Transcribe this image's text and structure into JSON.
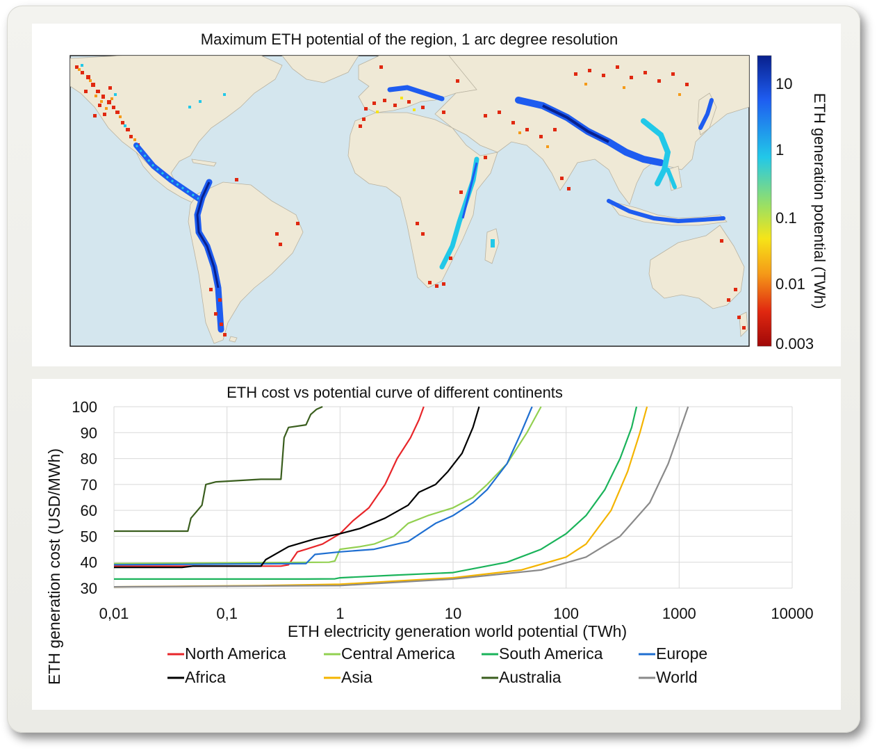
{
  "map": {
    "title": "Maximum ETH potential of the region, 1 arc degree resolution",
    "colorbar": {
      "label": "ETH generation potential (TWh)",
      "ticks": [
        "10",
        "1",
        "0.1",
        "0.01",
        "0.003"
      ],
      "colors": [
        "#08208c",
        "#1e5cf0",
        "#22c8e8",
        "#9ee060",
        "#f6e418",
        "#f59a18",
        "#e02810",
        "#a00808"
      ]
    }
  },
  "chart_data": {
    "type": "line",
    "title": "ETH cost vs potential curve of different continents",
    "xlabel": "ETH electricity generation world potential (TWh)",
    "ylabel": "ETH generation cost (USD/MWh)",
    "x_scale": "log",
    "xlim": [
      0.01,
      10000
    ],
    "ylim": [
      30,
      100
    ],
    "x_ticks": [
      "0,01",
      "0,1",
      "1",
      "10",
      "100",
      "1000",
      "10000"
    ],
    "y_ticks": [
      "30",
      "40",
      "50",
      "60",
      "70",
      "80",
      "90",
      "100"
    ],
    "grid": true,
    "legend_position": "bottom",
    "series": [
      {
        "name": "North America",
        "color": "#e8262a",
        "points": [
          [
            0.01,
            38.5
          ],
          [
            0.3,
            38.5
          ],
          [
            0.35,
            39
          ],
          [
            0.42,
            44
          ],
          [
            0.5,
            45
          ],
          [
            0.7,
            47
          ],
          [
            1.0,
            51
          ],
          [
            1.3,
            56
          ],
          [
            1.8,
            61
          ],
          [
            2.5,
            70
          ],
          [
            3.2,
            80
          ],
          [
            4.2,
            88
          ],
          [
            5.0,
            95
          ],
          [
            5.5,
            100
          ]
        ]
      },
      {
        "name": "Central America",
        "color": "#92d050",
        "points": [
          [
            0.01,
            39.5
          ],
          [
            0.8,
            40
          ],
          [
            0.9,
            40.5
          ],
          [
            1.0,
            45
          ],
          [
            1.5,
            46
          ],
          [
            2.0,
            47
          ],
          [
            3.0,
            50
          ],
          [
            4.0,
            55
          ],
          [
            6.0,
            58
          ],
          [
            10.0,
            61
          ],
          [
            15.0,
            65
          ],
          [
            20.0,
            70
          ],
          [
            30.0,
            78
          ],
          [
            45.0,
            90
          ],
          [
            60.0,
            100
          ]
        ]
      },
      {
        "name": "South America",
        "color": "#1ab35a",
        "points": [
          [
            0.01,
            33.5
          ],
          [
            0.5,
            33.5
          ],
          [
            0.9,
            33.6
          ],
          [
            1.0,
            34
          ],
          [
            3.0,
            35
          ],
          [
            10.0,
            36
          ],
          [
            30.0,
            40
          ],
          [
            60.0,
            45
          ],
          [
            100.0,
            51
          ],
          [
            150.0,
            58
          ],
          [
            220.0,
            68
          ],
          [
            300.0,
            80
          ],
          [
            380.0,
            92
          ],
          [
            420.0,
            100
          ]
        ]
      },
      {
        "name": "Europe",
        "color": "#1f6fd1",
        "points": [
          [
            0.01,
            39
          ],
          [
            0.5,
            39.5
          ],
          [
            0.6,
            43
          ],
          [
            1.0,
            44
          ],
          [
            2.0,
            45
          ],
          [
            4.0,
            48
          ],
          [
            7.0,
            55
          ],
          [
            10.0,
            58
          ],
          [
            15.0,
            63
          ],
          [
            20.0,
            68
          ],
          [
            30.0,
            78
          ],
          [
            40.0,
            90
          ],
          [
            50.0,
            100
          ]
        ]
      },
      {
        "name": "Africa",
        "color": "#000000",
        "points": [
          [
            0.01,
            38
          ],
          [
            0.04,
            38
          ],
          [
            0.05,
            38.5
          ],
          [
            0.2,
            38.5
          ],
          [
            0.22,
            41
          ],
          [
            0.35,
            46
          ],
          [
            0.6,
            49
          ],
          [
            1.0,
            51
          ],
          [
            1.5,
            53
          ],
          [
            2.5,
            57
          ],
          [
            4.0,
            62
          ],
          [
            5.0,
            67
          ],
          [
            7.0,
            70
          ],
          [
            9.0,
            75
          ],
          [
            12.0,
            82
          ],
          [
            15.0,
            92
          ],
          [
            17.0,
            100
          ]
        ]
      },
      {
        "name": "Asia",
        "color": "#f4b400",
        "points": [
          [
            0.01,
            30.5
          ],
          [
            0.2,
            31
          ],
          [
            1.0,
            31.5
          ],
          [
            10.0,
            34
          ],
          [
            40.0,
            37
          ],
          [
            100.0,
            42
          ],
          [
            150.0,
            47
          ],
          [
            250.0,
            60
          ],
          [
            350.0,
            75
          ],
          [
            450.0,
            90
          ],
          [
            520.0,
            100
          ]
        ]
      },
      {
        "name": "Australia",
        "color": "#3a5e1e",
        "points": [
          [
            0.01,
            52
          ],
          [
            0.045,
            52
          ],
          [
            0.048,
            57
          ],
          [
            0.06,
            62
          ],
          [
            0.065,
            70
          ],
          [
            0.08,
            71
          ],
          [
            0.2,
            72
          ],
          [
            0.3,
            72
          ],
          [
            0.32,
            88
          ],
          [
            0.35,
            92
          ],
          [
            0.5,
            93
          ],
          [
            0.55,
            97
          ],
          [
            0.62,
            99
          ],
          [
            0.7,
            100
          ]
        ]
      },
      {
        "name": "World",
        "color": "#8a8a8a",
        "points": [
          [
            0.01,
            30.5
          ],
          [
            1.0,
            31
          ],
          [
            10.0,
            33.5
          ],
          [
            60.0,
            37
          ],
          [
            150.0,
            42
          ],
          [
            300.0,
            50
          ],
          [
            550.0,
            63
          ],
          [
            800.0,
            78
          ],
          [
            1000.0,
            90
          ],
          [
            1200.0,
            100
          ]
        ]
      }
    ]
  }
}
